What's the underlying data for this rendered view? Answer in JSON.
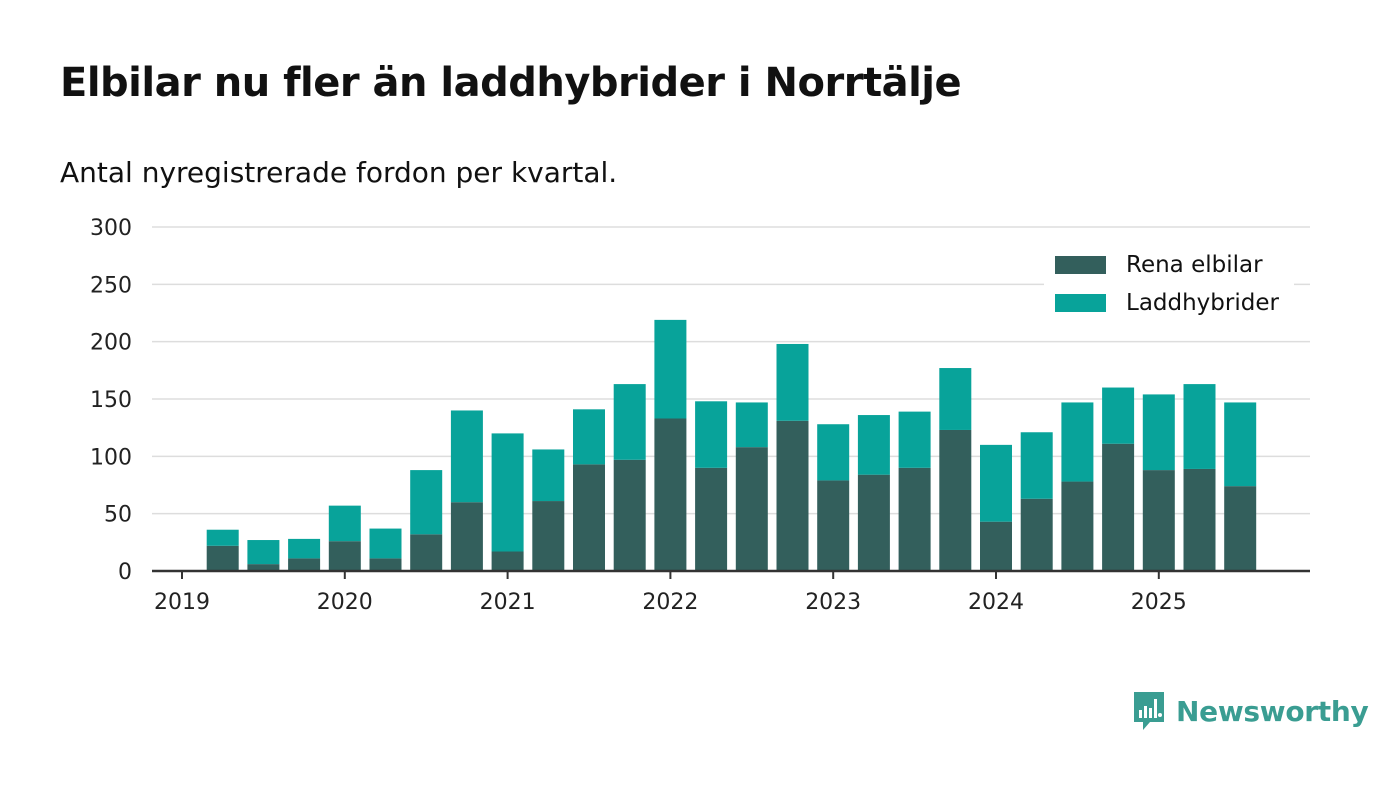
{
  "title": "Elbilar nu fler än laddhybrider i Norrtälje",
  "subtitle": "Antal nyregistrerade fordon per kvartal.",
  "brand": "Newsworthy",
  "colors": {
    "elbilar": "#335f5c",
    "laddhybrider": "#08a39a",
    "grid": "#dddddd",
    "axis": "#333333",
    "brand": "#3a9d92"
  },
  "chart_data": {
    "type": "bar",
    "stacked": true,
    "title": "Elbilar nu fler än laddhybrider i Norrtälje",
    "subtitle": "Antal nyregistrerade fordon per kvartal.",
    "xlabel": "",
    "ylabel": "",
    "ylim": [
      0,
      300
    ],
    "yticks": [
      0,
      50,
      100,
      150,
      200,
      250,
      300
    ],
    "xticks": [
      {
        "label": "2019",
        "quarter_index": 0
      },
      {
        "label": "2020",
        "quarter_index": 4
      },
      {
        "label": "2021",
        "quarter_index": 8
      },
      {
        "label": "2022",
        "quarter_index": 12
      },
      {
        "label": "2023",
        "quarter_index": 16
      },
      {
        "label": "2024",
        "quarter_index": 20
      },
      {
        "label": "2025",
        "quarter_index": 24
      }
    ],
    "categories": [
      "2019 Q1",
      "2019 Q2",
      "2019 Q3",
      "2019 Q4",
      "2020 Q1",
      "2020 Q2",
      "2020 Q3",
      "2020 Q4",
      "2021 Q1",
      "2021 Q2",
      "2021 Q3",
      "2021 Q4",
      "2022 Q1",
      "2022 Q2",
      "2022 Q3",
      "2022 Q4",
      "2023 Q1",
      "2023 Q2",
      "2023 Q3",
      "2023 Q4",
      "2024 Q1",
      "2024 Q2",
      "2024 Q3",
      "2024 Q4",
      "2025 Q1",
      "2025 Q2",
      "2025 Q3"
    ],
    "legend_position": "top-right",
    "grid": true,
    "series": [
      {
        "name": "Rena elbilar",
        "values": [
          0,
          22,
          6,
          11,
          26,
          11,
          32,
          60,
          17,
          61,
          93,
          97,
          133,
          90,
          108,
          131,
          79,
          84,
          90,
          123,
          43,
          63,
          78,
          111,
          88,
          89,
          74
        ]
      },
      {
        "name": "Laddhybrider",
        "values": [
          0,
          14,
          21,
          17,
          31,
          26,
          56,
          80,
          103,
          45,
          48,
          66,
          86,
          58,
          39,
          67,
          49,
          52,
          49,
          54,
          67,
          58,
          69,
          49,
          66,
          74,
          73
        ]
      }
    ]
  }
}
